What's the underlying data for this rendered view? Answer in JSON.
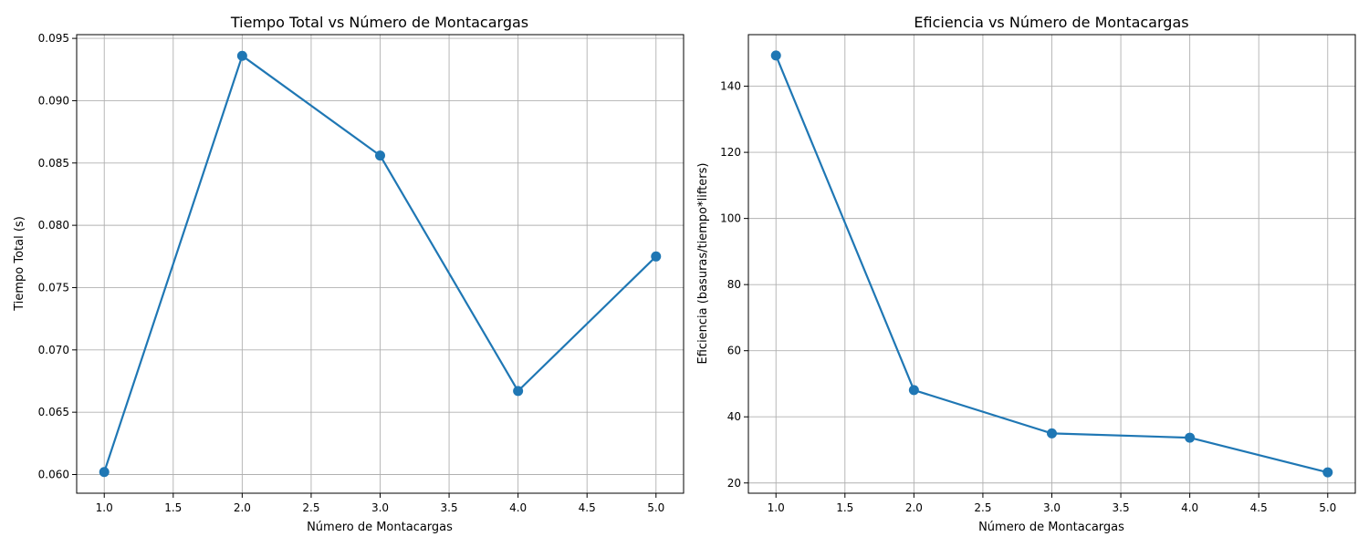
{
  "colors": {
    "series": "#1f77b4",
    "grid": "#b0b0b0",
    "axis": "#000000",
    "background": "#ffffff"
  },
  "chart_data": [
    {
      "type": "line",
      "title": "Tiempo Total vs Número de Montacargas",
      "xlabel": "Número de Montacargas",
      "ylabel": "Tiempo Total (s)",
      "x": [
        1,
        2,
        3,
        4,
        5
      ],
      "series": [
        {
          "values": [
            0.0602,
            0.0936,
            0.0856,
            0.0667,
            0.0775
          ]
        }
      ],
      "xlim": [
        0.8,
        5.2
      ],
      "ylim": [
        0.0585,
        0.0953
      ],
      "xticks": [
        1.0,
        1.5,
        2.0,
        2.5,
        3.0,
        3.5,
        4.0,
        4.5,
        5.0
      ],
      "xtick_labels": [
        "1.0",
        "1.5",
        "2.0",
        "2.5",
        "3.0",
        "3.5",
        "4.0",
        "4.5",
        "5.0"
      ],
      "yticks": [
        0.06,
        0.065,
        0.07,
        0.075,
        0.08,
        0.085,
        0.09,
        0.095
      ],
      "ytick_labels": [
        "0.060",
        "0.065",
        "0.070",
        "0.075",
        "0.080",
        "0.085",
        "0.090",
        "0.095"
      ],
      "grid": true,
      "marker": "circle"
    },
    {
      "type": "line",
      "title": "Eficiencia vs Número de Montacargas",
      "xlabel": "Número de Montacargas",
      "ylabel": "Eficiencia (basuras/tiempo*lifters)",
      "x": [
        1,
        2,
        3,
        4,
        5
      ],
      "series": [
        {
          "values": [
            149.3,
            48.1,
            35.0,
            33.7,
            23.2
          ]
        }
      ],
      "xlim": [
        0.8,
        5.2
      ],
      "ylim": [
        16.9,
        155.6
      ],
      "xticks": [
        1.0,
        1.5,
        2.0,
        2.5,
        3.0,
        3.5,
        4.0,
        4.5,
        5.0
      ],
      "xtick_labels": [
        "1.0",
        "1.5",
        "2.0",
        "2.5",
        "3.0",
        "3.5",
        "4.0",
        "4.5",
        "5.0"
      ],
      "yticks": [
        20,
        40,
        60,
        80,
        100,
        120,
        140
      ],
      "ytick_labels": [
        "20",
        "40",
        "60",
        "80",
        "100",
        "120",
        "140"
      ],
      "grid": true,
      "marker": "circle"
    }
  ]
}
